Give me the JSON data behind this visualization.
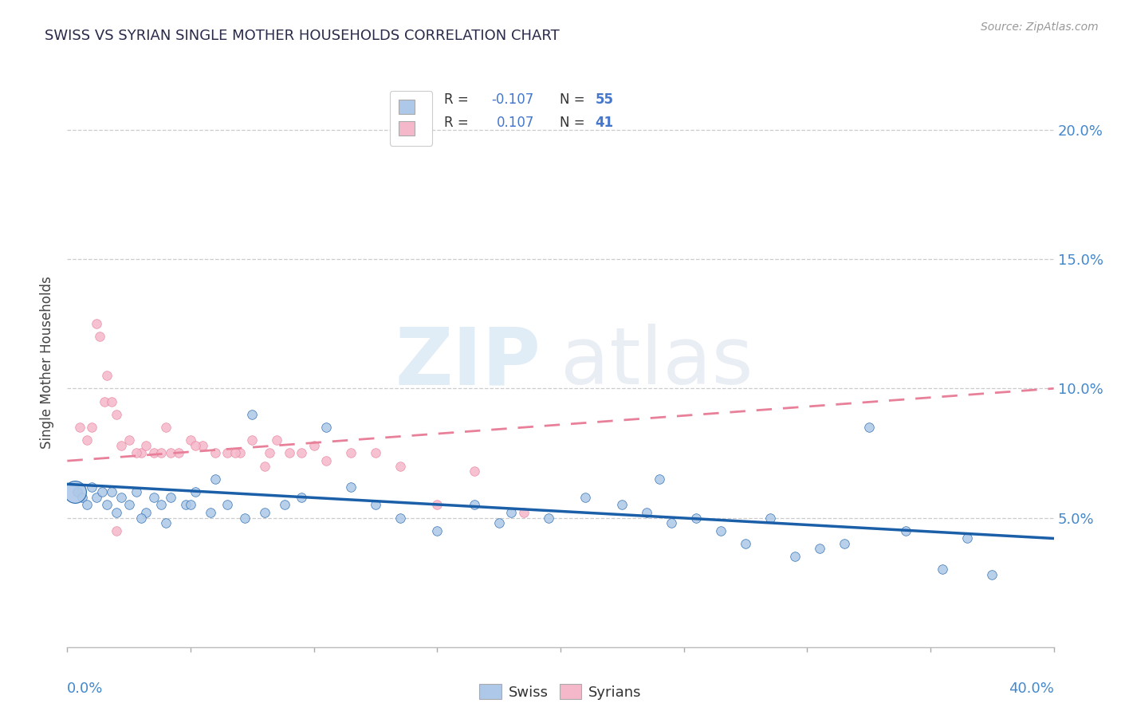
{
  "title": "SWISS VS SYRIAN SINGLE MOTHER HOUSEHOLDS CORRELATION CHART",
  "source": "Source: ZipAtlas.com",
  "ylabel": "Single Mother Households",
  "legend_swiss_R": "-0.107",
  "legend_swiss_N": "55",
  "legend_syrian_R": "0.107",
  "legend_syrian_N": "41",
  "swiss_color": "#adc8e8",
  "syrian_color": "#f5b8cb",
  "swiss_line_color": "#1a5fa8",
  "syrian_line_color": "#e8809a",
  "swiss_scatter_x": [
    0.4,
    0.6,
    0.8,
    1.0,
    1.2,
    1.4,
    1.6,
    1.8,
    2.0,
    2.2,
    2.5,
    2.8,
    3.2,
    3.5,
    3.8,
    4.2,
    4.8,
    5.2,
    5.8,
    6.5,
    7.2,
    8.0,
    8.8,
    9.5,
    10.5,
    11.5,
    12.5,
    13.5,
    15.0,
    16.5,
    18.0,
    19.5,
    21.0,
    22.5,
    23.5,
    24.5,
    25.5,
    26.5,
    27.5,
    28.5,
    29.5,
    30.5,
    31.5,
    32.5,
    34.0,
    35.5,
    36.5,
    37.5,
    24.0,
    17.5,
    7.5,
    6.0,
    5.0,
    4.0,
    3.0
  ],
  "swiss_scatter_y": [
    6.0,
    5.8,
    5.5,
    6.2,
    5.8,
    6.0,
    5.5,
    6.0,
    5.2,
    5.8,
    5.5,
    6.0,
    5.2,
    5.8,
    5.5,
    5.8,
    5.5,
    6.0,
    5.2,
    5.5,
    5.0,
    5.2,
    5.5,
    5.8,
    8.5,
    6.2,
    5.5,
    5.0,
    4.5,
    5.5,
    5.2,
    5.0,
    5.8,
    5.5,
    5.2,
    4.8,
    5.0,
    4.5,
    4.0,
    5.0,
    3.5,
    3.8,
    4.0,
    8.5,
    4.5,
    3.0,
    4.2,
    2.8,
    6.5,
    4.8,
    9.0,
    6.5,
    5.5,
    4.8,
    5.0
  ],
  "swiss_large_dot_x": 0.3,
  "swiss_large_dot_y": 6.0,
  "swiss_large_dot_size": 400,
  "syrian_scatter_x": [
    0.5,
    0.8,
    1.0,
    1.2,
    1.5,
    1.8,
    2.0,
    2.5,
    3.0,
    3.5,
    4.0,
    4.5,
    5.0,
    5.5,
    6.0,
    6.5,
    7.0,
    7.5,
    8.0,
    8.5,
    9.0,
    9.5,
    10.0,
    10.5,
    11.5,
    12.5,
    13.5,
    15.0,
    16.5,
    18.5,
    2.2,
    2.8,
    3.2,
    3.8,
    4.2,
    5.2,
    6.8,
    8.2,
    2.0,
    1.6,
    1.3
  ],
  "syrian_scatter_y": [
    8.5,
    8.0,
    8.5,
    12.5,
    9.5,
    9.5,
    9.0,
    8.0,
    7.5,
    7.5,
    8.5,
    7.5,
    8.0,
    7.8,
    7.5,
    7.5,
    7.5,
    8.0,
    7.0,
    8.0,
    7.5,
    7.5,
    7.8,
    7.2,
    7.5,
    7.5,
    7.0,
    5.5,
    6.8,
    5.2,
    7.8,
    7.5,
    7.8,
    7.5,
    7.5,
    7.8,
    7.5,
    7.5,
    4.5,
    10.5,
    12.0
  ],
  "swiss_trend_x": [
    0.0,
    40.0
  ],
  "swiss_trend_y": [
    6.3,
    4.2
  ],
  "syrian_trend_x": [
    0.0,
    40.0
  ],
  "syrian_trend_y": [
    7.2,
    10.0
  ],
  "watermark_zip": "ZIP",
  "watermark_atlas": "atlas",
  "xlim": [
    0,
    40
  ],
  "ylim": [
    0,
    22
  ],
  "ytick_positions": [
    5,
    10,
    15,
    20
  ],
  "ytick_labels": [
    "5.0%",
    "10.0%",
    "15.0%",
    "20.0%"
  ],
  "bg_color": "#ffffff",
  "grid_color": "#cccccc",
  "title_color": "#2a2a4a",
  "axis_label_color": "#4488cc",
  "right_axis_color": "#4488cc",
  "source_color": "#999999"
}
